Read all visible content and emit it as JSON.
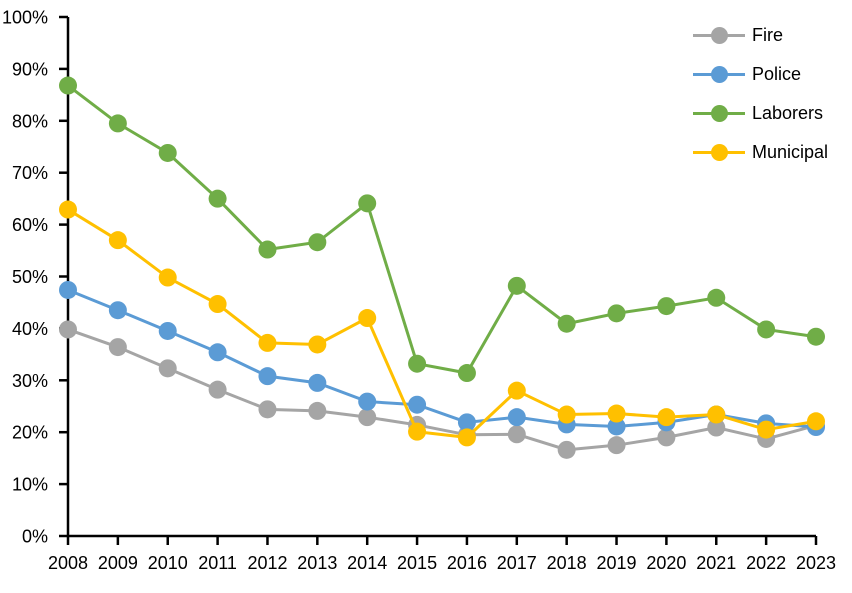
{
  "chart_data": {
    "type": "line",
    "title": "",
    "xlabel": "",
    "ylabel": "",
    "x_labels": [
      "2008",
      "2009",
      "2010",
      "2011",
      "2012",
      "2013",
      "2014",
      "2015",
      "2016",
      "2017",
      "2018",
      "2019",
      "2020",
      "2021",
      "2022",
      "2023"
    ],
    "ylim": [
      0,
      100
    ],
    "ytick_step": 10,
    "ytick_suffix": "%",
    "grid": false,
    "legend_position": "top-right",
    "axis_color": "#000000",
    "series": [
      {
        "name": "Fire",
        "color": "#A5A5A5",
        "values": [
          39.8,
          36.4,
          32.3,
          28.2,
          24.4,
          24.1,
          22.9,
          21.4,
          19.5,
          19.6,
          16.6,
          17.5,
          19.0,
          20.9,
          18.7,
          21.3
        ]
      },
      {
        "name": "Police",
        "color": "#5B9BD5",
        "values": [
          47.4,
          43.5,
          39.5,
          35.4,
          30.8,
          29.5,
          25.9,
          25.3,
          21.9,
          22.9,
          21.5,
          21.1,
          21.9,
          23.4,
          21.7,
          21.0
        ]
      },
      {
        "name": "Laborers",
        "color": "#70AD47",
        "values": [
          86.8,
          79.5,
          73.8,
          65.0,
          55.2,
          56.6,
          64.1,
          33.2,
          31.4,
          48.2,
          40.9,
          42.9,
          44.3,
          45.9,
          39.8,
          38.4
        ]
      },
      {
        "name": "Municipal",
        "color": "#FFC000",
        "values": [
          62.9,
          57.0,
          49.8,
          44.7,
          37.2,
          36.9,
          42.0,
          20.1,
          19.0,
          28.0,
          23.4,
          23.6,
          22.9,
          23.4,
          20.5,
          22.1
        ]
      }
    ]
  }
}
